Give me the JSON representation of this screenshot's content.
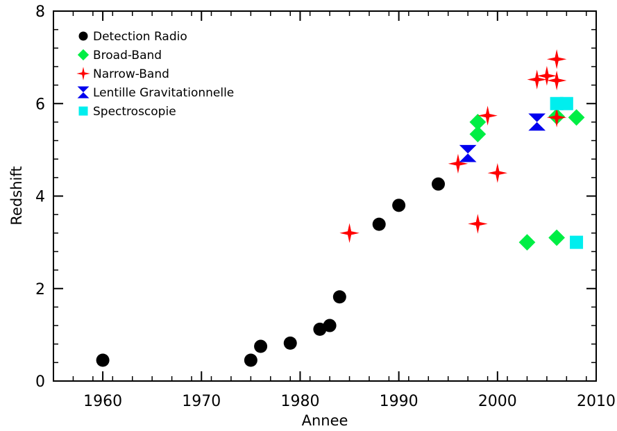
{
  "chart_data": {
    "type": "scatter",
    "title": "",
    "xlabel": "Annee",
    "ylabel": "Redshift",
    "xlim": [
      1955,
      2010
    ],
    "ylim": [
      0,
      8
    ],
    "xticks": [
      1960,
      1970,
      1980,
      1990,
      2000,
      2010
    ],
    "yticks": [
      0,
      2,
      4,
      6,
      8
    ],
    "grid": false,
    "legend_position": "top-left",
    "series": [
      {
        "name": "Detection Radio",
        "marker": "circle",
        "color": "#000000",
        "points": [
          {
            "x": 1960,
            "y": 0.45
          },
          {
            "x": 1975,
            "y": 0.45
          },
          {
            "x": 1976,
            "y": 0.75
          },
          {
            "x": 1979,
            "y": 0.82
          },
          {
            "x": 1982,
            "y": 1.12
          },
          {
            "x": 1983,
            "y": 1.2
          },
          {
            "x": 1984,
            "y": 1.82
          },
          {
            "x": 1988,
            "y": 3.39
          },
          {
            "x": 1990,
            "y": 3.8
          },
          {
            "x": 1994,
            "y": 4.26
          }
        ]
      },
      {
        "name": "Broad-Band",
        "marker": "diamond",
        "color": "#00ee44",
        "points": [
          {
            "x": 1998,
            "y": 5.34
          },
          {
            "x": 1998,
            "y": 5.6
          },
          {
            "x": 2003,
            "y": 3.0
          },
          {
            "x": 2006,
            "y": 3.1
          },
          {
            "x": 2006,
            "y": 5.72
          },
          {
            "x": 2008,
            "y": 5.7
          }
        ]
      },
      {
        "name": "Narrow-Band",
        "marker": "star",
        "color": "#ff0000",
        "points": [
          {
            "x": 1985,
            "y": 3.2
          },
          {
            "x": 1996,
            "y": 4.7
          },
          {
            "x": 1998,
            "y": 3.4
          },
          {
            "x": 1999,
            "y": 5.74
          },
          {
            "x": 2000,
            "y": 4.5
          },
          {
            "x": 2004,
            "y": 6.52
          },
          {
            "x": 2005,
            "y": 6.6
          },
          {
            "x": 2006,
            "y": 6.96
          },
          {
            "x": 2006,
            "y": 6.5
          },
          {
            "x": 2006,
            "y": 5.7
          }
        ]
      },
      {
        "name": "Lentille Gravitationnelle",
        "marker": "hourglass",
        "color": "#0000ee",
        "points": [
          {
            "x": 1997,
            "y": 4.92
          },
          {
            "x": 2004,
            "y": 5.6
          }
        ]
      },
      {
        "name": "Spectroscopie",
        "marker": "square",
        "color": "#00eeee",
        "points": [
          {
            "x": 2006,
            "y": 6.0
          },
          {
            "x": 2007,
            "y": 6.0
          },
          {
            "x": 2008,
            "y": 3.0
          }
        ]
      }
    ]
  }
}
